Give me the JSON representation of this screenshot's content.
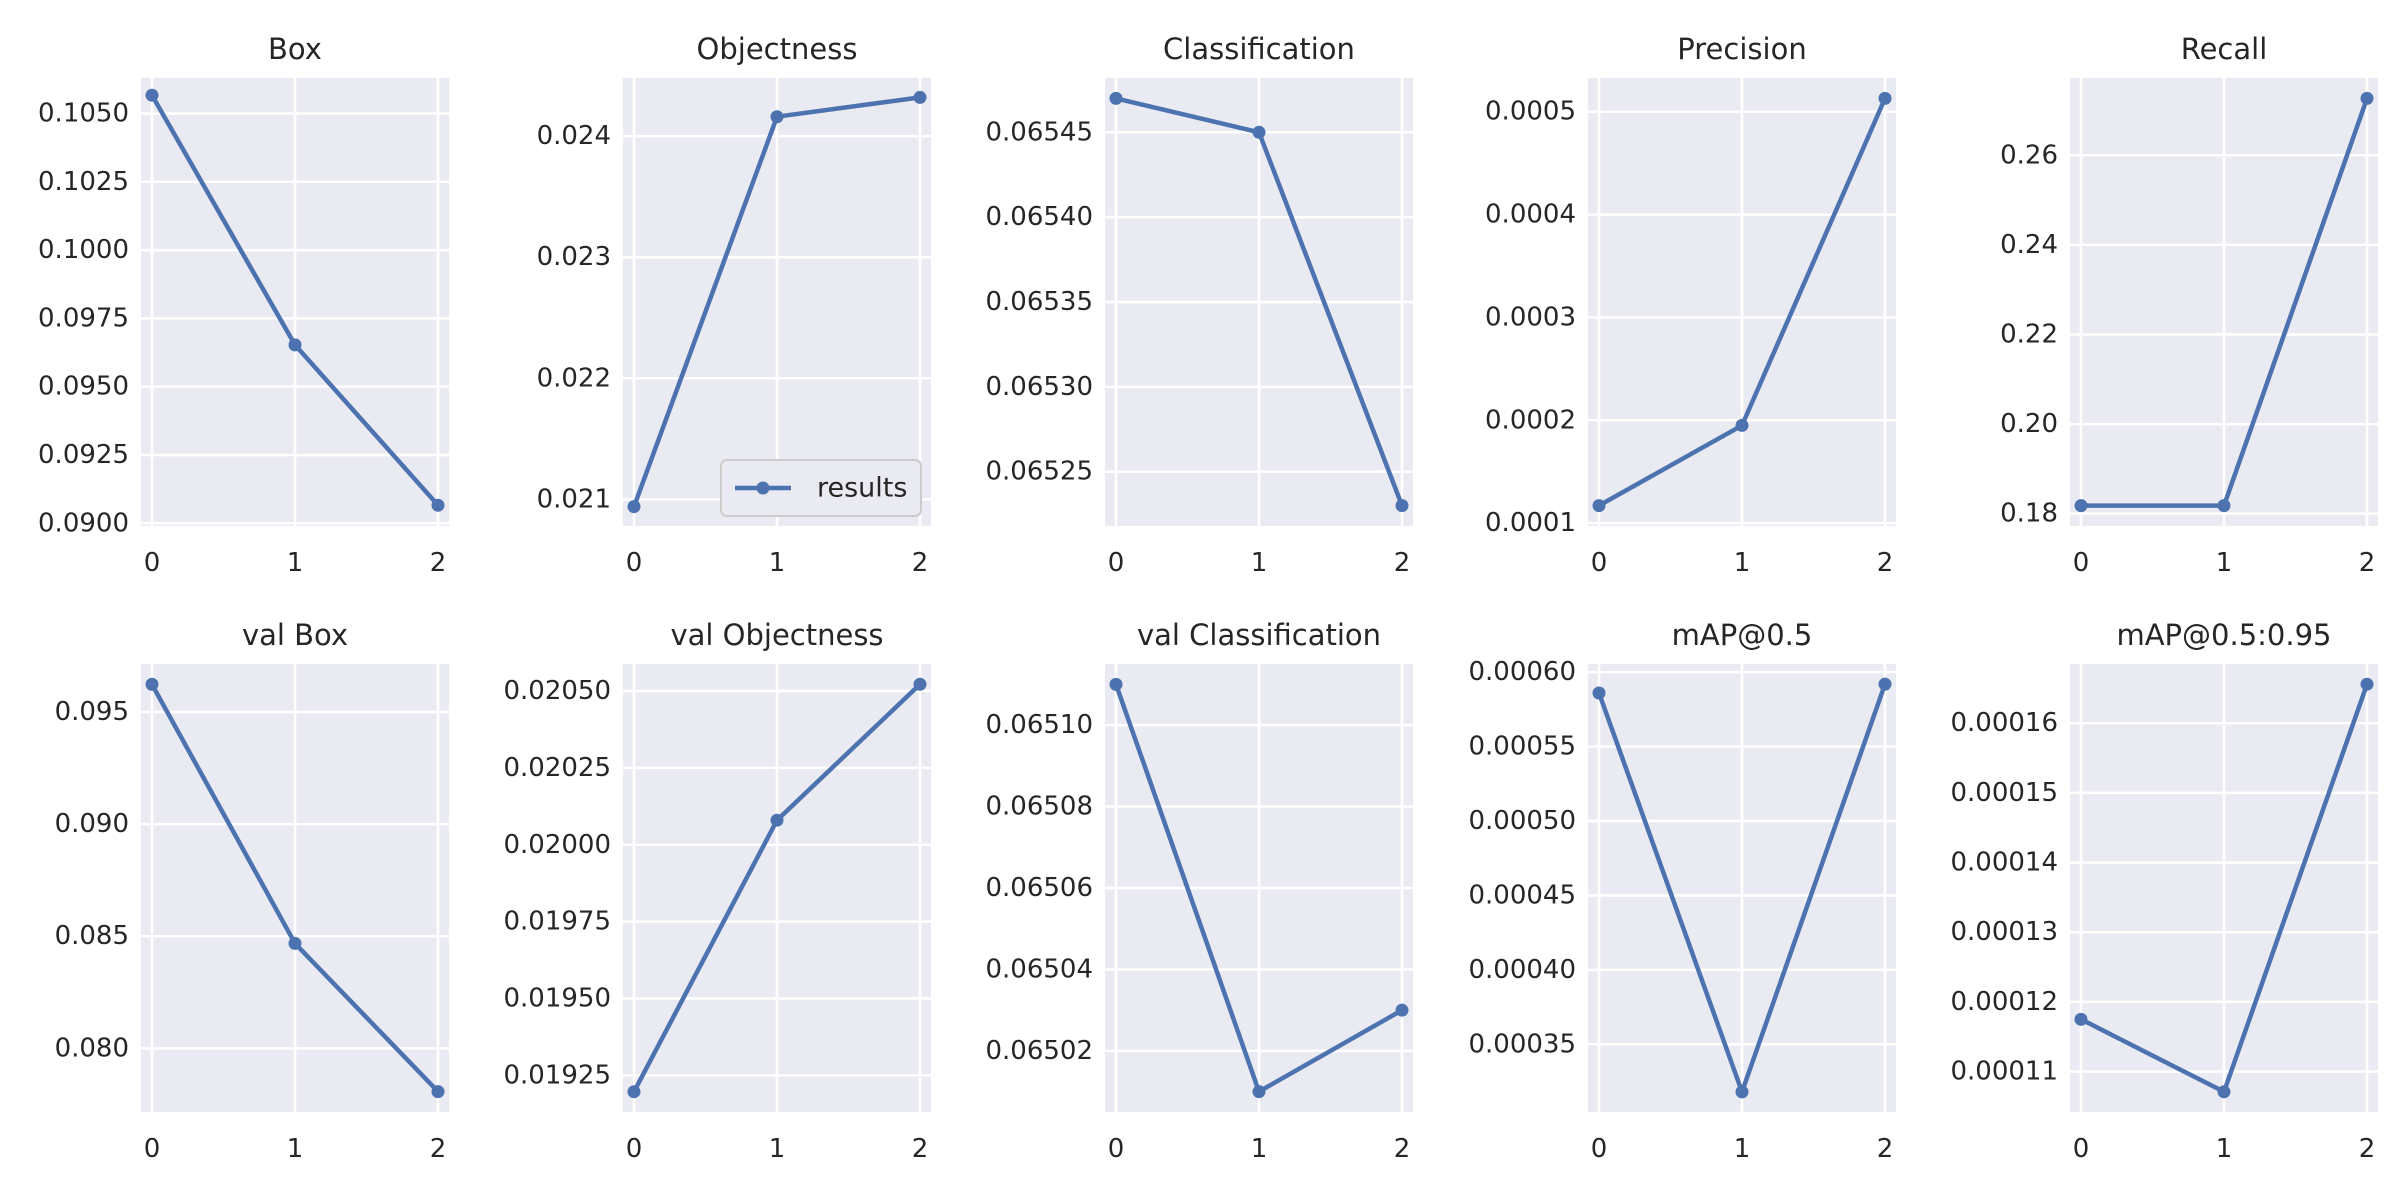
{
  "chart_data": [
    {
      "type": "line",
      "title": "Box",
      "x": [
        0,
        1,
        2
      ],
      "values": [
        0.10567,
        0.09653,
        0.09066
      ],
      "ylim": [
        0.0899,
        0.1063
      ],
      "yticks": [
        "0.0900",
        "0.0925",
        "0.0950",
        "0.0975",
        "0.1000",
        "0.1025",
        "0.1050"
      ],
      "ytick_values": [
        0.09,
        0.0925,
        0.095,
        0.0975,
        0.1,
        0.1025,
        0.105
      ],
      "xticks": [
        "0",
        "1",
        "2"
      ],
      "grid": true
    },
    {
      "type": "line",
      "title": "Objectness",
      "x": [
        0,
        1,
        2
      ],
      "values": [
        0.02094,
        0.02416,
        0.02432
      ],
      "ylim": [
        0.02078,
        0.02448
      ],
      "yticks": [
        "0.021",
        "0.022",
        "0.023",
        "0.024"
      ],
      "ytick_values": [
        0.021,
        0.022,
        0.023,
        0.024
      ],
      "xticks": [
        "0",
        "1",
        "2"
      ],
      "grid": true,
      "legend": {
        "position": "lower-right",
        "entries": [
          "results"
        ]
      }
    },
    {
      "type": "line",
      "title": "Classification",
      "x": [
        0,
        1,
        2
      ],
      "values": [
        0.06547,
        0.06545,
        0.06523
      ],
      "ylim": [
        0.065218,
        0.065482
      ],
      "yticks": [
        "0.06525",
        "0.06530",
        "0.06535",
        "0.06540",
        "0.06545"
      ],
      "ytick_values": [
        0.06525,
        0.0653,
        0.06535,
        0.0654,
        0.06545
      ],
      "xticks": [
        "0",
        "1",
        "2"
      ],
      "grid": true
    },
    {
      "type": "line",
      "title": "Precision",
      "x": [
        0,
        1,
        2
      ],
      "values": [
        0.000117,
        0.000195,
        0.000513
      ],
      "ylim": [
        9.72e-05,
        0.0005328
      ],
      "yticks": [
        "0.0001",
        "0.0002",
        "0.0003",
        "0.0004",
        "0.0005"
      ],
      "ytick_values": [
        0.0001,
        0.0002,
        0.0003,
        0.0004,
        0.0005
      ],
      "xticks": [
        "0",
        "1",
        "2"
      ],
      "grid": true
    },
    {
      "type": "line",
      "title": "Recall",
      "x": [
        0,
        1,
        2
      ],
      "values": [
        0.1818,
        0.1818,
        0.2727
      ],
      "ylim": [
        0.17725,
        0.27725
      ],
      "yticks": [
        "0.18",
        "0.20",
        "0.22",
        "0.24",
        "0.26"
      ],
      "ytick_values": [
        0.18,
        0.2,
        0.22,
        0.24,
        0.26
      ],
      "xticks": [
        "0",
        "1",
        "2"
      ],
      "grid": true
    },
    {
      "type": "line",
      "title": "val Box",
      "x": [
        0,
        1,
        2
      ],
      "values": [
        0.09623,
        0.08468,
        0.07807
      ],
      "ylim": [
        0.07716,
        0.09714
      ],
      "yticks": [
        "0.080",
        "0.085",
        "0.090",
        "0.095"
      ],
      "ytick_values": [
        0.08,
        0.085,
        0.09,
        0.095
      ],
      "xticks": [
        "0",
        "1",
        "2"
      ],
      "grid": true
    },
    {
      "type": "line",
      "title": "val Objectness",
      "x": [
        0,
        1,
        2
      ],
      "values": [
        0.019197,
        0.02008,
        0.020522
      ],
      "ylim": [
        0.019131,
        0.020588
      ],
      "yticks": [
        "0.01925",
        "0.01950",
        "0.01975",
        "0.02000",
        "0.02025",
        "0.02050"
      ],
      "ytick_values": [
        0.01925,
        0.0195,
        0.01975,
        0.02,
        0.02025,
        0.0205
      ],
      "xticks": [
        "0",
        "1",
        "2"
      ],
      "grid": true
    },
    {
      "type": "line",
      "title": "val Classification",
      "x": [
        0,
        1,
        2
      ],
      "values": [
        0.06511,
        0.06501,
        0.06503
      ],
      "ylim": [
        0.065005,
        0.065115
      ],
      "yticks": [
        "0.06502",
        "0.06504",
        "0.06506",
        "0.06508",
        "0.06510"
      ],
      "ytick_values": [
        0.06502,
        0.06504,
        0.06506,
        0.06508,
        0.0651
      ],
      "xticks": [
        "0",
        "1",
        "2"
      ],
      "grid": true
    },
    {
      "type": "line",
      "title": "mAP@0.5",
      "x": [
        0,
        1,
        2
      ],
      "values": [
        0.000586,
        0.000318,
        0.000592
      ],
      "ylim": [
        0.0003045,
        0.0006055
      ],
      "yticks": [
        "0.00035",
        "0.00040",
        "0.00045",
        "0.00050",
        "0.00055",
        "0.00060"
      ],
      "ytick_values": [
        0.00035,
        0.0004,
        0.00045,
        0.0005,
        0.00055,
        0.0006
      ],
      "xticks": [
        "0",
        "1",
        "2"
      ],
      "grid": true
    },
    {
      "type": "line",
      "title": "mAP@0.5:0.95",
      "x": [
        0,
        1,
        2
      ],
      "values": [
        0.0001175,
        0.0001071,
        0.0001656
      ],
      "ylim": [
        0.0001042,
        0.0001685
      ],
      "yticks": [
        "0.00011",
        "0.00012",
        "0.00013",
        "0.00014",
        "0.00015",
        "0.00016"
      ],
      "ytick_values": [
        0.00011,
        0.00012,
        0.00013,
        0.00014,
        0.00015,
        0.00016
      ],
      "xticks": [
        "0",
        "1",
        "2"
      ],
      "grid": true
    }
  ],
  "legend_label": "results",
  "colors": {
    "line": "#4c72b0",
    "panel_bg": "#eaeaf2",
    "grid": "#ffffff",
    "text": "#262626"
  }
}
